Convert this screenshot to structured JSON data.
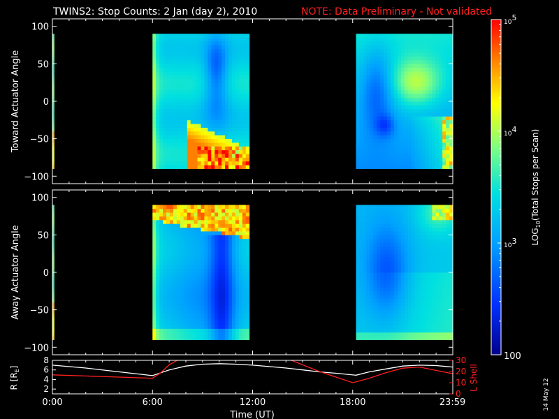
{
  "title": {
    "main": "TWINS2: Stop Counts:  2 Jan (day   2), 2010",
    "note": "NOTE: Data Preliminary - Not validated",
    "main_color": "#ffffff",
    "note_color": "#ff2020"
  },
  "side_label": "14 May 12",
  "chart_data": [
    {
      "type": "heatmap",
      "name": "toward",
      "ylabel": "Toward Actuator Angle",
      "ylim": [
        -110,
        110
      ],
      "yticks": [
        100,
        50,
        0,
        -50,
        -100
      ],
      "xlim": [
        0,
        24
      ],
      "blocks": [
        {
          "t_start": 0.0,
          "t_end": 0.1,
          "pattern": "edge"
        },
        {
          "t_start": 6.0,
          "t_end": 11.8,
          "pattern": "pass1_toward"
        },
        {
          "t_start": 18.2,
          "t_end": 24.0,
          "pattern": "pass2_toward"
        }
      ],
      "angle_range": [
        -90,
        90
      ]
    },
    {
      "type": "heatmap",
      "name": "away",
      "ylabel": "Away Actuator Angle",
      "ylim": [
        -110,
        110
      ],
      "yticks": [
        100,
        50,
        0,
        -50,
        -100
      ],
      "xlim": [
        0,
        24
      ],
      "blocks": [
        {
          "t_start": 0.0,
          "t_end": 0.1,
          "pattern": "edge"
        },
        {
          "t_start": 6.0,
          "t_end": 11.8,
          "pattern": "pass1_away"
        },
        {
          "t_start": 18.2,
          "t_end": 24.0,
          "pattern": "pass2_away"
        }
      ],
      "angle_range": [
        -90,
        90
      ]
    },
    {
      "type": "line",
      "name": "orbit",
      "xlabel": "Time (UT)",
      "xticks": [
        "0:00",
        "6:00",
        "12:00",
        "18:00",
        "23:59"
      ],
      "xtick_values": [
        0,
        6,
        12,
        18,
        23.98
      ],
      "ylabel_left": "R [R",
      "ylabel_left_sub": "E",
      "ylabel_left_end": "]",
      "ylim_left": [
        1,
        8
      ],
      "yticks_left": [
        8,
        6,
        4,
        2
      ],
      "ylabel_right": "L Shell",
      "ylim_right": [
        0,
        30
      ],
      "yticks_right": [
        30,
        20,
        10,
        0
      ],
      "series": [
        {
          "name": "R",
          "axis": "left",
          "color": "#ffffff",
          "x": [
            0,
            2,
            4,
            6,
            7,
            8,
            9,
            10,
            11,
            12,
            13,
            14,
            15,
            16,
            17,
            18.2,
            19,
            20,
            21,
            22,
            23,
            24
          ],
          "y": [
            7.0,
            6.4,
            5.6,
            4.8,
            6.0,
            6.8,
            7.2,
            7.3,
            7.2,
            7.0,
            6.7,
            6.4,
            6.0,
            5.6,
            5.3,
            4.9,
            5.6,
            6.2,
            6.8,
            7.0,
            6.9,
            6.6
          ]
        },
        {
          "name": "L Shell",
          "axis": "right",
          "color": "#ff2020",
          "x": [
            0,
            2,
            4,
            6,
            6.5,
            7,
            7.6,
            8.0
          ],
          "y": [
            17,
            16,
            15,
            14,
            19,
            26,
            31,
            32
          ],
          "x2": [
            14.0,
            15,
            16,
            17,
            18,
            19,
            20,
            21,
            22,
            23,
            24
          ],
          "y2": [
            32,
            26,
            20,
            15,
            10,
            14,
            19,
            23,
            24,
            21,
            18
          ]
        }
      ]
    },
    {
      "type": "colorbar",
      "label": "LOG",
      "label_sub": "10",
      "label_rest": "(Total Stops per Scan)",
      "scale": "log",
      "range": [
        100,
        100000
      ],
      "ticks": [
        {
          "value": 100000,
          "base": "10",
          "exp": "5"
        },
        {
          "value": 10000,
          "base": "10",
          "exp": "4"
        },
        {
          "value": 1000,
          "base": "10",
          "exp": "3"
        },
        {
          "value": 100,
          "base": "100",
          "exp": ""
        }
      ]
    }
  ]
}
